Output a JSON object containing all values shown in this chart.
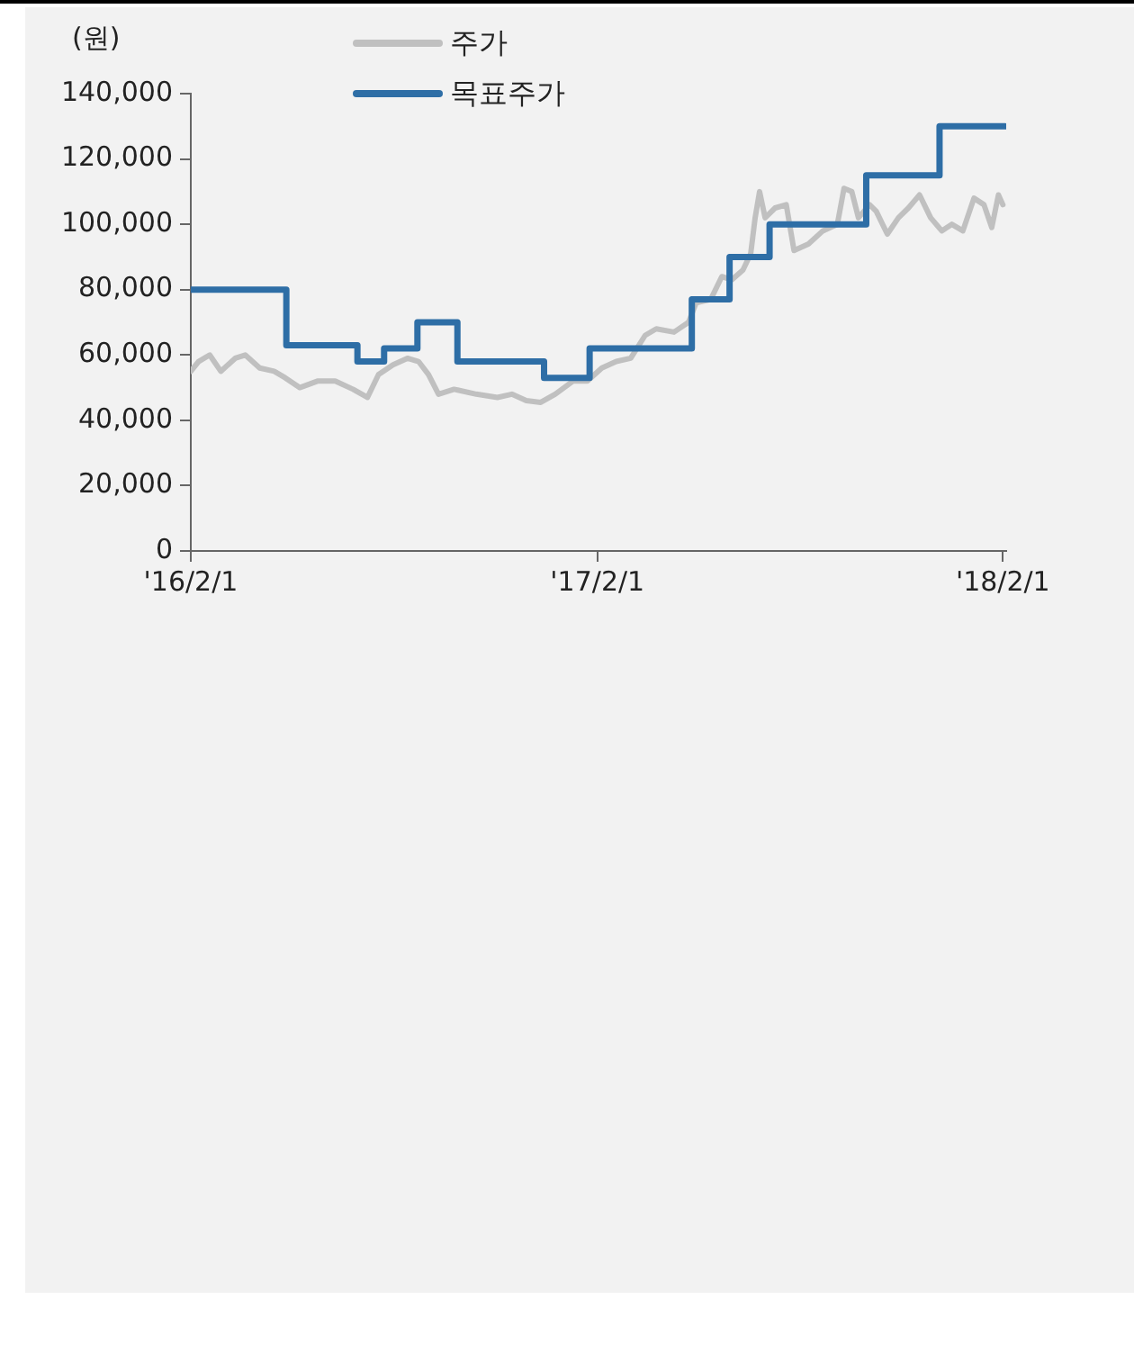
{
  "chart_data": {
    "type": "line",
    "ylabel": "(원)",
    "legend": "top",
    "grid": false,
    "marker": "none",
    "line_style": "solid",
    "xlim": [
      "2016-02-01",
      "2018-02-04"
    ],
    "xticks": [
      {
        "value": "2016-02-01",
        "label": "'16/2/1"
      },
      {
        "value": "2017-02-01",
        "label": "'17/2/1"
      },
      {
        "value": "2018-02-01",
        "label": "'18/2/1"
      }
    ],
    "ylim": [
      0,
      140000
    ],
    "yticks": [
      0,
      {
        "value": 20000,
        "label": "20,000"
      },
      {
        "value": 40000,
        "label": "40,000"
      },
      {
        "value": 60000,
        "label": "60,000"
      },
      {
        "value": 80000,
        "label": "80,000"
      },
      {
        "value": 100000,
        "label": "100,000"
      },
      {
        "value": 120000,
        "label": "120,000"
      },
      {
        "value": 140000,
        "label": "140,000"
      }
    ],
    "series": [
      {
        "name": "주가",
        "color": "#c0c0c0",
        "x": [
          "2016-02-01",
          "2016-02-08",
          "2016-02-18",
          "2016-02-28",
          "2016-03-12",
          "2016-03-21",
          "2016-04-03",
          "2016-04-16",
          "2016-04-26",
          "2016-05-09",
          "2016-05-25",
          "2016-06-10",
          "2016-06-26",
          "2016-07-09",
          "2016-07-19",
          "2016-08-01",
          "2016-08-14",
          "2016-08-24",
          "2016-09-02",
          "2016-09-11",
          "2016-09-25",
          "2016-10-15",
          "2016-11-03",
          "2016-11-16",
          "2016-11-29",
          "2016-12-12",
          "2016-12-25",
          "2017-01-10",
          "2017-01-23",
          "2017-02-05",
          "2017-02-18",
          "2017-03-03",
          "2017-03-16",
          "2017-03-26",
          "2017-04-11",
          "2017-04-24",
          "2017-05-01",
          "2017-05-14",
          "2017-05-24",
          "2017-06-02",
          "2017-06-12",
          "2017-06-19",
          "2017-06-23",
          "2017-06-27",
          "2017-07-02",
          "2017-07-11",
          "2017-07-21",
          "2017-07-28",
          "2017-08-10",
          "2017-08-23",
          "2017-09-05",
          "2017-09-11",
          "2017-09-18",
          "2017-09-24",
          "2017-10-04",
          "2017-10-10",
          "2017-10-20",
          "2017-10-30",
          "2017-11-08",
          "2017-11-18",
          "2017-11-28",
          "2017-12-08",
          "2017-12-17",
          "2017-12-27",
          "2018-01-06",
          "2018-01-15",
          "2018-01-22",
          "2018-01-28",
          "2018-02-01"
        ],
        "values": [
          55000,
          58000,
          60000,
          55000,
          59000,
          60000,
          56000,
          55000,
          53000,
          50000,
          52000,
          52000,
          49500,
          47000,
          54000,
          57000,
          59000,
          58000,
          54000,
          48000,
          49500,
          48000,
          47000,
          48000,
          46000,
          45500,
          48000,
          52000,
          52000,
          56000,
          58000,
          59000,
          66000,
          68000,
          67000,
          70000,
          76000,
          77000,
          84000,
          83000,
          86000,
          91000,
          102000,
          110000,
          102000,
          105000,
          106000,
          92000,
          94000,
          98000,
          100000,
          111000,
          110000,
          102000,
          106000,
          104000,
          97000,
          102000,
          105000,
          109000,
          102000,
          98000,
          100000,
          98000,
          108000,
          106000,
          99000,
          109000,
          106000
        ]
      },
      {
        "name": "목표주가",
        "type": "step",
        "color": "#2e6ea6",
        "x": [
          "2016-02-01",
          "2016-04-27",
          "2016-06-30",
          "2016-07-24",
          "2016-08-23",
          "2016-09-28",
          "2016-12-15",
          "2017-01-25",
          "2017-04-27",
          "2017-05-31",
          "2017-07-06",
          "2017-10-01",
          "2017-12-06",
          "2018-02-03"
        ],
        "values": [
          80000,
          63000,
          58000,
          62000,
          70000,
          58000,
          53000,
          62000,
          77000,
          90000,
          100000,
          115000,
          130000,
          130000
        ]
      }
    ]
  }
}
